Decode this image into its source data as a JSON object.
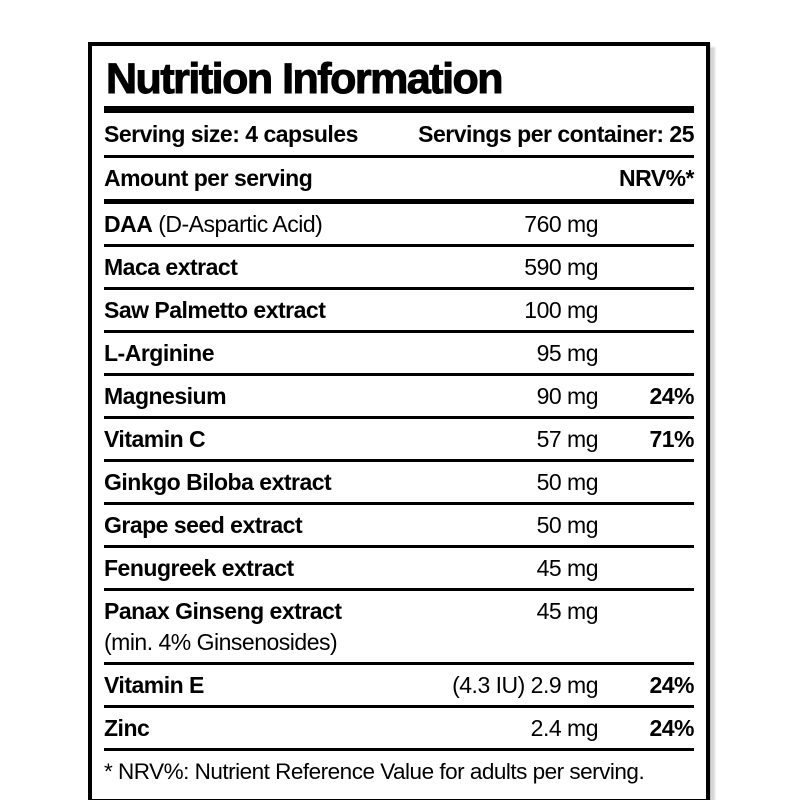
{
  "label": {
    "title": "Nutrition Information",
    "serving_size": "Serving size: 4 capsules",
    "servings_per_container": "Servings per container: 25",
    "column_header_left": "Amount per serving",
    "column_header_right": "NRV%*",
    "rows": [
      {
        "name": "DAA",
        "name_note": " (D-Aspartic Acid)",
        "amount": "760 mg",
        "nrv": ""
      },
      {
        "name": "Maca extract",
        "amount": "590 mg",
        "nrv": ""
      },
      {
        "name": "Saw Palmetto extract",
        "amount": "100 mg",
        "nrv": ""
      },
      {
        "name": "L-Arginine",
        "amount": "95 mg",
        "nrv": ""
      },
      {
        "name": "Magnesium",
        "amount": "90 mg",
        "nrv": "24%"
      },
      {
        "name": "Vitamin C",
        "amount": "57 mg",
        "nrv": "71%"
      },
      {
        "name": "Ginkgo Biloba extract",
        "amount": "50 mg",
        "nrv": ""
      },
      {
        "name": "Grape seed extract",
        "amount": "50 mg",
        "nrv": ""
      },
      {
        "name": "Fenugreek extract",
        "amount": "45 mg",
        "nrv": ""
      },
      {
        "name": "Panax Ginseng extract",
        "subline": "(min. 4% Ginsenosides)",
        "amount": "45 mg",
        "nrv": ""
      },
      {
        "name": "Vitamin E",
        "amount": "(4.3 IU) 2.9 mg",
        "nrv": "24%"
      },
      {
        "name": "Zinc",
        "amount": "2.4 mg",
        "nrv": "24%"
      }
    ],
    "footnote": "* NRV%: Nutrient Reference Value for adults per serving."
  },
  "colors": {
    "text": "#000000",
    "background": "#ffffff",
    "border": "#000000"
  }
}
